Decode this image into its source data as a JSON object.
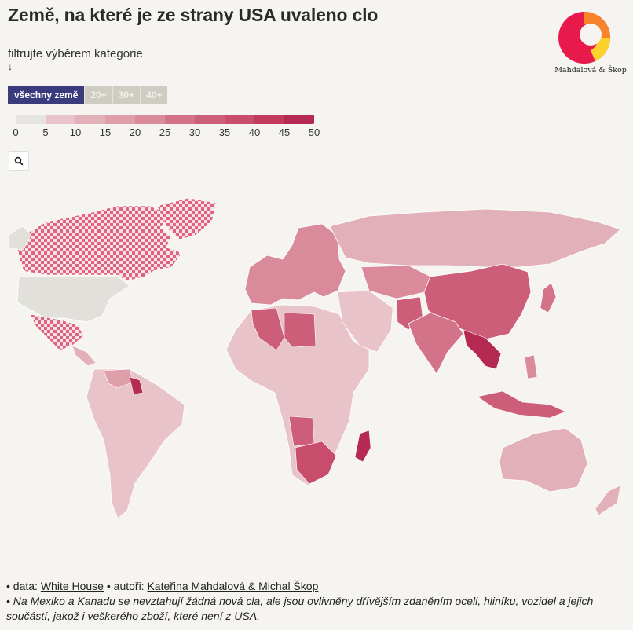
{
  "title": "Země, na které je ze strany USA uvaleno clo",
  "logo": {
    "text": "Mahdalová & Škop",
    "colors": [
      "#e8194b",
      "#f7842a",
      "#fcd22e"
    ]
  },
  "subtitle": "filtrujte výběrem kategorie",
  "subtitle_arrow": "↓",
  "filters": [
    {
      "label": "všechny země",
      "active": true
    },
    {
      "label": "20+",
      "active": false
    },
    {
      "label": "30+",
      "active": false
    },
    {
      "label": "40+",
      "active": false
    }
  ],
  "legend": {
    "ticks": [
      "0",
      "5",
      "10",
      "15",
      "20",
      "25",
      "30",
      "35",
      "40",
      "45",
      "50"
    ],
    "colors": [
      "#e6e4df",
      "#e8c3c9",
      "#e2b0b9",
      "#de9fab",
      "#d98b9c",
      "#d3738a",
      "#cd5e7a",
      "#c84d6c",
      "#c23a5e",
      "#b42a52"
    ]
  },
  "zoom_icon": "search-icon",
  "map": {
    "no_data_color": "#e1e0db",
    "checker_color": "#e2627f",
    "regions": [
      {
        "name": "Kanada",
        "category": "checker"
      },
      {
        "name": "Mexiko",
        "category": "checker"
      },
      {
        "name": "Grónsko",
        "category": "checker"
      },
      {
        "name": "USA",
        "category": "nodata"
      },
      {
        "name": "Jižní Amerika",
        "category": "10"
      },
      {
        "name": "Venezuela",
        "category": "15"
      },
      {
        "name": "Guyana",
        "category": "40"
      },
      {
        "name": "Afrika",
        "category": "10"
      },
      {
        "name": "Alžírsko",
        "category": "30"
      },
      {
        "name": "Libye",
        "category": "30"
      },
      {
        "name": "Angola",
        "category": "30"
      },
      {
        "name": "Botswana",
        "category": "35"
      },
      {
        "name": "Jihoafrická republika",
        "category": "30"
      },
      {
        "name": "Madagaskar",
        "category": "45"
      },
      {
        "name": "Evropa",
        "category": "20"
      },
      {
        "name": "Rusko",
        "category": "10"
      },
      {
        "name": "Čína",
        "category": "30"
      },
      {
        "name": "Indie",
        "category": "25"
      },
      {
        "name": "Pákistán",
        "category": "30"
      },
      {
        "name": "Myanmar",
        "category": "45"
      },
      {
        "name": "Vietnam",
        "category": "45"
      },
      {
        "name": "Indonésie",
        "category": "30"
      },
      {
        "name": "Japonsko",
        "category": "25"
      },
      {
        "name": "Austrálie",
        "category": "10"
      },
      {
        "name": "Nový Zéland",
        "category": "10"
      }
    ]
  },
  "footer": {
    "data_prefix": "• data: ",
    "data_link": "White House",
    "authors_prefix": " • autoři: ",
    "authors_link": "Kateřina Mahdalová & Michal Škop",
    "note": "• Na Mexiko a Kanadu se nevztahují žádná nová cla, ale jsou ovlivněny dřívějším zdaněním oceli, hliníku, vozidel a jejich součástí, jakož i veškerého zboží, které není z USA."
  }
}
